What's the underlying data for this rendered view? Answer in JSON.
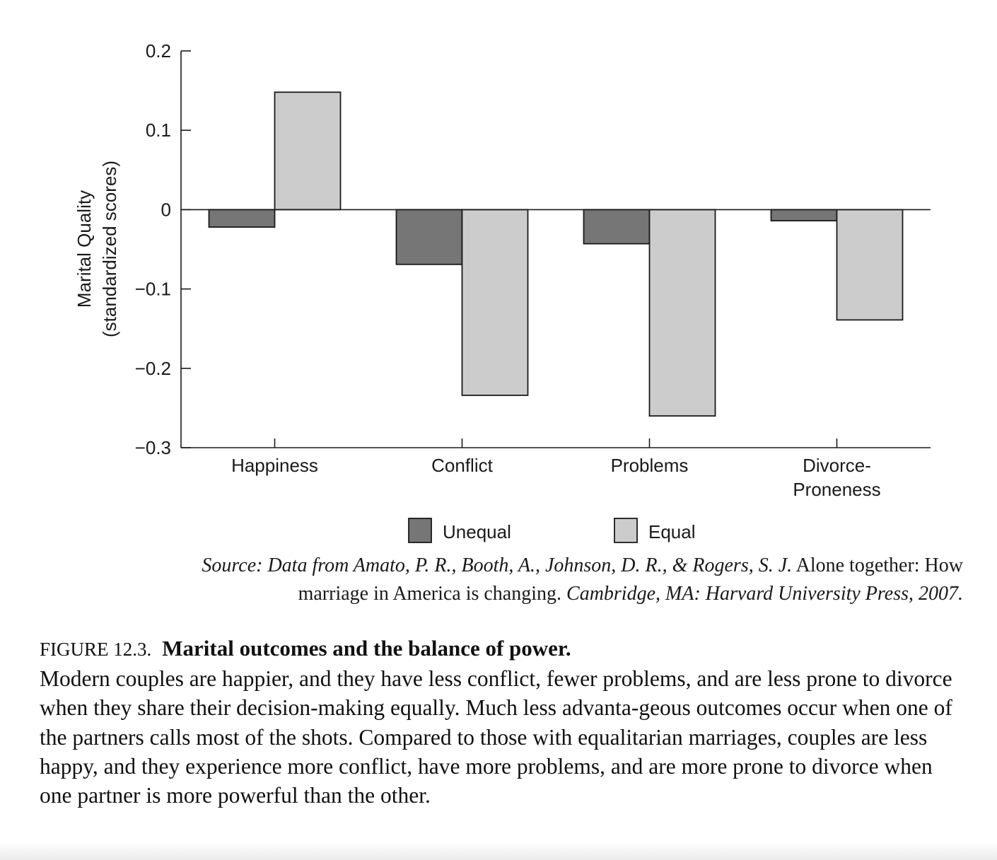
{
  "chart_data": {
    "type": "bar",
    "categories": [
      "Happiness",
      "Conflict",
      "Problems",
      "Divorce-\nProneness"
    ],
    "series": [
      {
        "name": "Unequal",
        "values": [
          -0.022,
          -0.069,
          -0.043,
          -0.014
        ],
        "color": "#767676"
      },
      {
        "name": "Equal",
        "values": [
          0.148,
          -0.234,
          -0.26,
          -0.139
        ],
        "color": "#cccccc"
      }
    ],
    "ylim": [
      -0.3,
      0.2
    ],
    "yticks": [
      {
        "value": 0.2,
        "label": "0.2"
      },
      {
        "value": 0.1,
        "label": "0.1"
      },
      {
        "value": 0,
        "label": "0"
      },
      {
        "value": -0.1,
        "label": "−0.1"
      },
      {
        "value": -0.2,
        "label": "−0.2"
      },
      {
        "value": -0.3,
        "label": "−0.3"
      }
    ],
    "ylabel_line1": "Marital Quality",
    "ylabel_line2": "(standardized scores)",
    "xlabel": "",
    "legend_position": "bottom-center",
    "grid": false
  },
  "source": {
    "italic_1": "Source: Data from Amato, P. R., Booth, A., Johnson, D. R., & Rogers, S. J.",
    "roman_1": " Alone together: How",
    "roman_2": "marriage in America is changing.",
    "italic_2": " Cambridge, MA: Harvard University Press, 2007."
  },
  "caption": {
    "figure_number": "FIGURE 12.3.",
    "title": "Marital outcomes and the balance of power.",
    "body": "Modern couples are happier, and they have less conflict, fewer problems, and are less prone to divorce when they share their decision-making equally. Much less advanta-geous outcomes occur when one of the partners calls most of the shots. Compared to those with equalitarian marriages, couples are less happy, and they experience more conflict, have more problems, and are more prone to divorce when one partner is more powerful than the other."
  }
}
